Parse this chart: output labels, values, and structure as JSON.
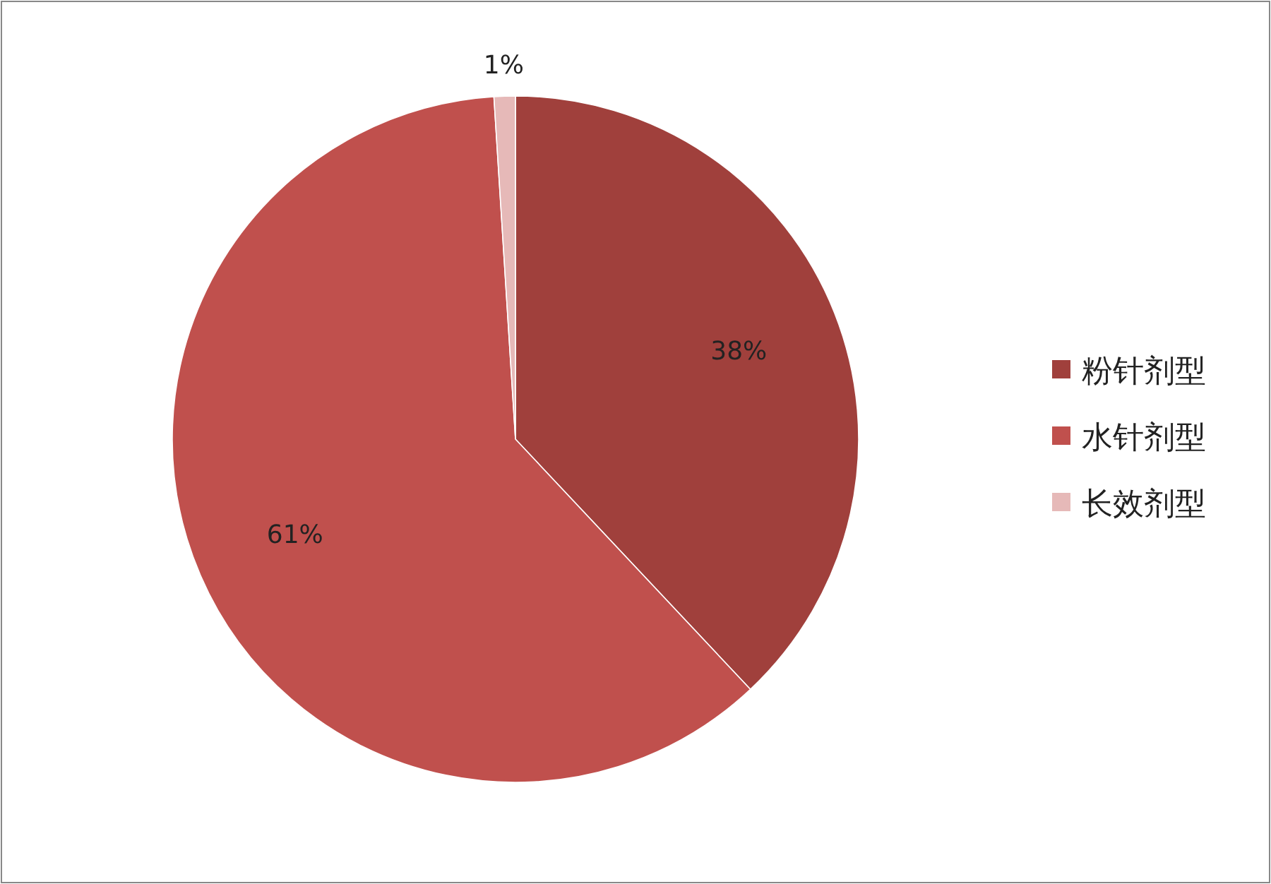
{
  "chart_data": {
    "type": "pie",
    "categories": [
      "粉针剂型",
      "水针剂型",
      "长效剂型"
    ],
    "values": [
      38,
      61,
      1
    ],
    "colors": [
      "#a0403c",
      "#c0504d",
      "#e6b9b8"
    ],
    "value_labels": [
      "38%",
      "61%",
      "1%"
    ],
    "legend": "right"
  }
}
